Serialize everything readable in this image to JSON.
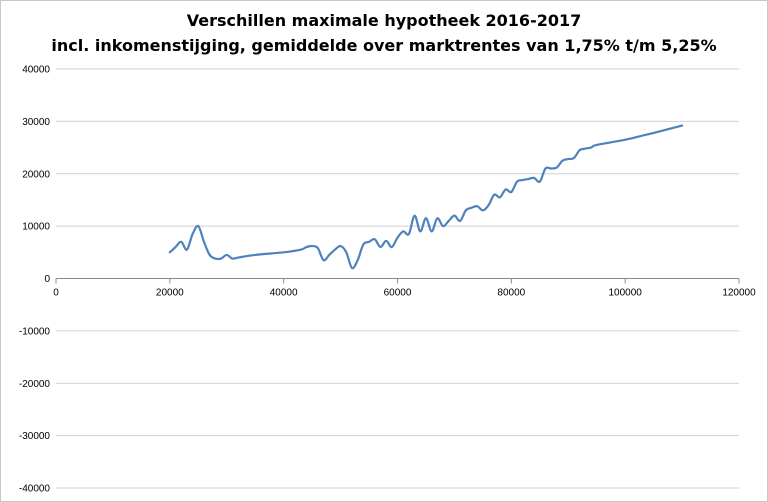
{
  "chart_data": {
    "type": "line",
    "title_lines": [
      "Verschillen maximale hypotheek 2016-2017",
      "incl. inkomenstijging,  gemiddelde over marktrentes  van 1,75% t/m 5,25%"
    ],
    "xlabel": "",
    "ylabel": "",
    "xlim": [
      0,
      120000
    ],
    "ylim": [
      -40000,
      40000
    ],
    "x_ticks": [
      "0",
      "20000",
      "40000",
      "60000",
      "80000",
      "100000",
      "120000"
    ],
    "y_ticks": [
      "40000",
      "30000",
      "20000",
      "10000",
      "0",
      "-10000",
      "-20000",
      "-30000",
      "-40000"
    ],
    "grid": "horizontal",
    "legend": "none",
    "series": [
      {
        "color": "#4f81bd",
        "x": [
          20000,
          21000,
          22000,
          23000,
          24000,
          25000,
          26000,
          27000,
          28000,
          29000,
          30000,
          31000,
          32000,
          35000,
          40000,
          43000,
          44000,
          45000,
          46000,
          47000,
          48000,
          49000,
          50000,
          51000,
          52000,
          53000,
          54000,
          55000,
          56000,
          57000,
          58000,
          59000,
          60000,
          61000,
          62000,
          63000,
          64000,
          65000,
          66000,
          67000,
          68000,
          69000,
          70000,
          71000,
          72000,
          73000,
          74000,
          75000,
          76000,
          77000,
          78000,
          79000,
          80000,
          81000,
          82000,
          83000,
          84000,
          85000,
          86000,
          87000,
          88000,
          89000,
          90000,
          91000,
          92000,
          93000,
          94000,
          95000,
          100000,
          105000,
          110000
        ],
        "y": [
          5000,
          6000,
          7000,
          5500,
          8500,
          10000,
          7000,
          4500,
          3800,
          3800,
          4500,
          3800,
          4000,
          4500,
          5000,
          5500,
          6000,
          6200,
          5800,
          3500,
          4500,
          5500,
          6200,
          5000,
          2000,
          3500,
          6500,
          7000,
          7500,
          6000,
          7200,
          6000,
          7800,
          9000,
          8500,
          12000,
          9000,
          11500,
          9000,
          11500,
          10000,
          11000,
          12000,
          11000,
          13000,
          13500,
          13800,
          13000,
          14000,
          16000,
          15500,
          17000,
          16500,
          18500,
          18800,
          19000,
          19200,
          18500,
          21000,
          21000,
          21200,
          22500,
          22800,
          23000,
          24500,
          24800,
          25000,
          25500,
          26500,
          27800,
          29200
        ]
      }
    ]
  }
}
